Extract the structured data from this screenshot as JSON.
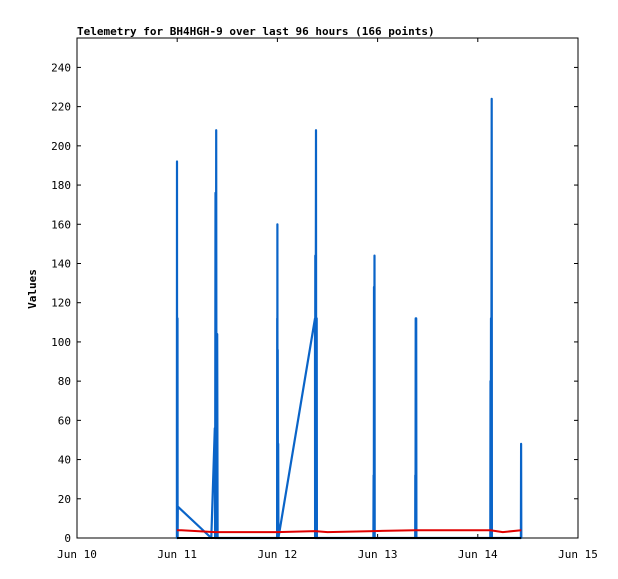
{
  "chart_data": {
    "type": "line",
    "title": "Telemetry for BH4HGH-9 over last 96 hours (166 points)",
    "xlabel": "",
    "ylabel": "Values",
    "xlim": [
      "Jun 10",
      "Jun 15"
    ],
    "ylim": [
      0,
      255
    ],
    "x_ticks": [
      "Jun 10",
      "Jun 11",
      "Jun 12",
      "Jun 13",
      "Jun 14",
      "Jun 15"
    ],
    "y_ticks": [
      0,
      20,
      40,
      60,
      80,
      100,
      120,
      140,
      160,
      180,
      200,
      220,
      240
    ],
    "grid": false,
    "series": [
      {
        "color": "#0a64c8",
        "points": [
          [
            "Jun 10 23:55",
            0
          ],
          [
            "Jun 10 23:56",
            48
          ],
          [
            "Jun 10 23:57",
            192
          ],
          [
            "Jun 10 23:58",
            0
          ],
          [
            "Jun 11 00:05",
            112
          ],
          [
            "Jun 11 00:06",
            0
          ],
          [
            "Jun 11 00:08",
            16
          ],
          [
            "Jun 11 08:10",
            0
          ],
          [
            "Jun 11 09:00",
            56
          ],
          [
            "Jun 11 09:05",
            0
          ],
          [
            "Jun 11 09:10",
            176
          ],
          [
            "Jun 11 09:15",
            0
          ],
          [
            "Jun 11 09:20",
            208
          ],
          [
            "Jun 11 09:25",
            0
          ],
          [
            "Jun 11 09:35",
            104
          ],
          [
            "Jun 11 09:40",
            0
          ],
          [
            "Jun 11 23:55",
            0
          ],
          [
            "Jun 11 23:57",
            112
          ],
          [
            "Jun 11 23:58",
            0
          ],
          [
            "Jun 12 00:00",
            160
          ],
          [
            "Jun 12 00:02",
            0
          ],
          [
            "Jun 12 00:05",
            96
          ],
          [
            "Jun 12 00:08",
            0
          ],
          [
            "Jun 12 00:12",
            48
          ],
          [
            "Jun 12 00:14",
            0
          ],
          [
            "Jun 12 09:00",
            112
          ],
          [
            "Jun 12 09:02",
            0
          ],
          [
            "Jun 12 09:05",
            144
          ],
          [
            "Jun 12 09:08",
            0
          ],
          [
            "Jun 12 09:15",
            208
          ],
          [
            "Jun 12 09:18",
            0
          ],
          [
            "Jun 12 09:25",
            112
          ],
          [
            "Jun 12 09:28",
            0
          ],
          [
            "Jun 12 23:00",
            0
          ],
          [
            "Jun 12 23:02",
            32
          ],
          [
            "Jun 12 23:05",
            0
          ],
          [
            "Jun 12 23:08",
            128
          ],
          [
            "Jun 12 23:10",
            0
          ],
          [
            "Jun 12 23:15",
            144
          ],
          [
            "Jun 12 23:18",
            0
          ],
          [
            "Jun 13 09:00",
            0
          ],
          [
            "Jun 13 09:02",
            32
          ],
          [
            "Jun 13 09:05",
            0
          ],
          [
            "Jun 13 09:08",
            112
          ],
          [
            "Jun 13 09:10",
            0
          ],
          [
            "Jun 13 09:15",
            112
          ],
          [
            "Jun 13 09:18",
            0
          ],
          [
            "Jun 14 03:00",
            0
          ],
          [
            "Jun 14 03:02",
            80
          ],
          [
            "Jun 14 03:05",
            0
          ],
          [
            "Jun 14 03:10",
            112
          ],
          [
            "Jun 14 03:12",
            0
          ],
          [
            "Jun 14 03:20",
            224
          ],
          [
            "Jun 14 03:23",
            0
          ],
          [
            "Jun 14 10:20",
            0
          ],
          [
            "Jun 14 10:22",
            48
          ],
          [
            "Jun 14 10:25",
            0
          ]
        ]
      },
      {
        "color": "#e00000",
        "points": [
          [
            "Jun 10 23:55",
            4
          ],
          [
            "Jun 11 01:00",
            4
          ],
          [
            "Jun 11 09:00",
            3
          ],
          [
            "Jun 12 00:00",
            3
          ],
          [
            "Jun 12 09:00",
            3.5
          ],
          [
            "Jun 12 12:00",
            3
          ],
          [
            "Jun 12 23:00",
            3.5
          ],
          [
            "Jun 13 09:00",
            4
          ],
          [
            "Jun 14 03:00",
            4
          ],
          [
            "Jun 14 06:00",
            3
          ],
          [
            "Jun 14 10:25",
            4
          ]
        ]
      },
      {
        "color": "#000000",
        "points": [
          [
            "Jun 10 23:55",
            0
          ],
          [
            "Jun 14 10:25",
            0
          ]
        ]
      }
    ]
  }
}
